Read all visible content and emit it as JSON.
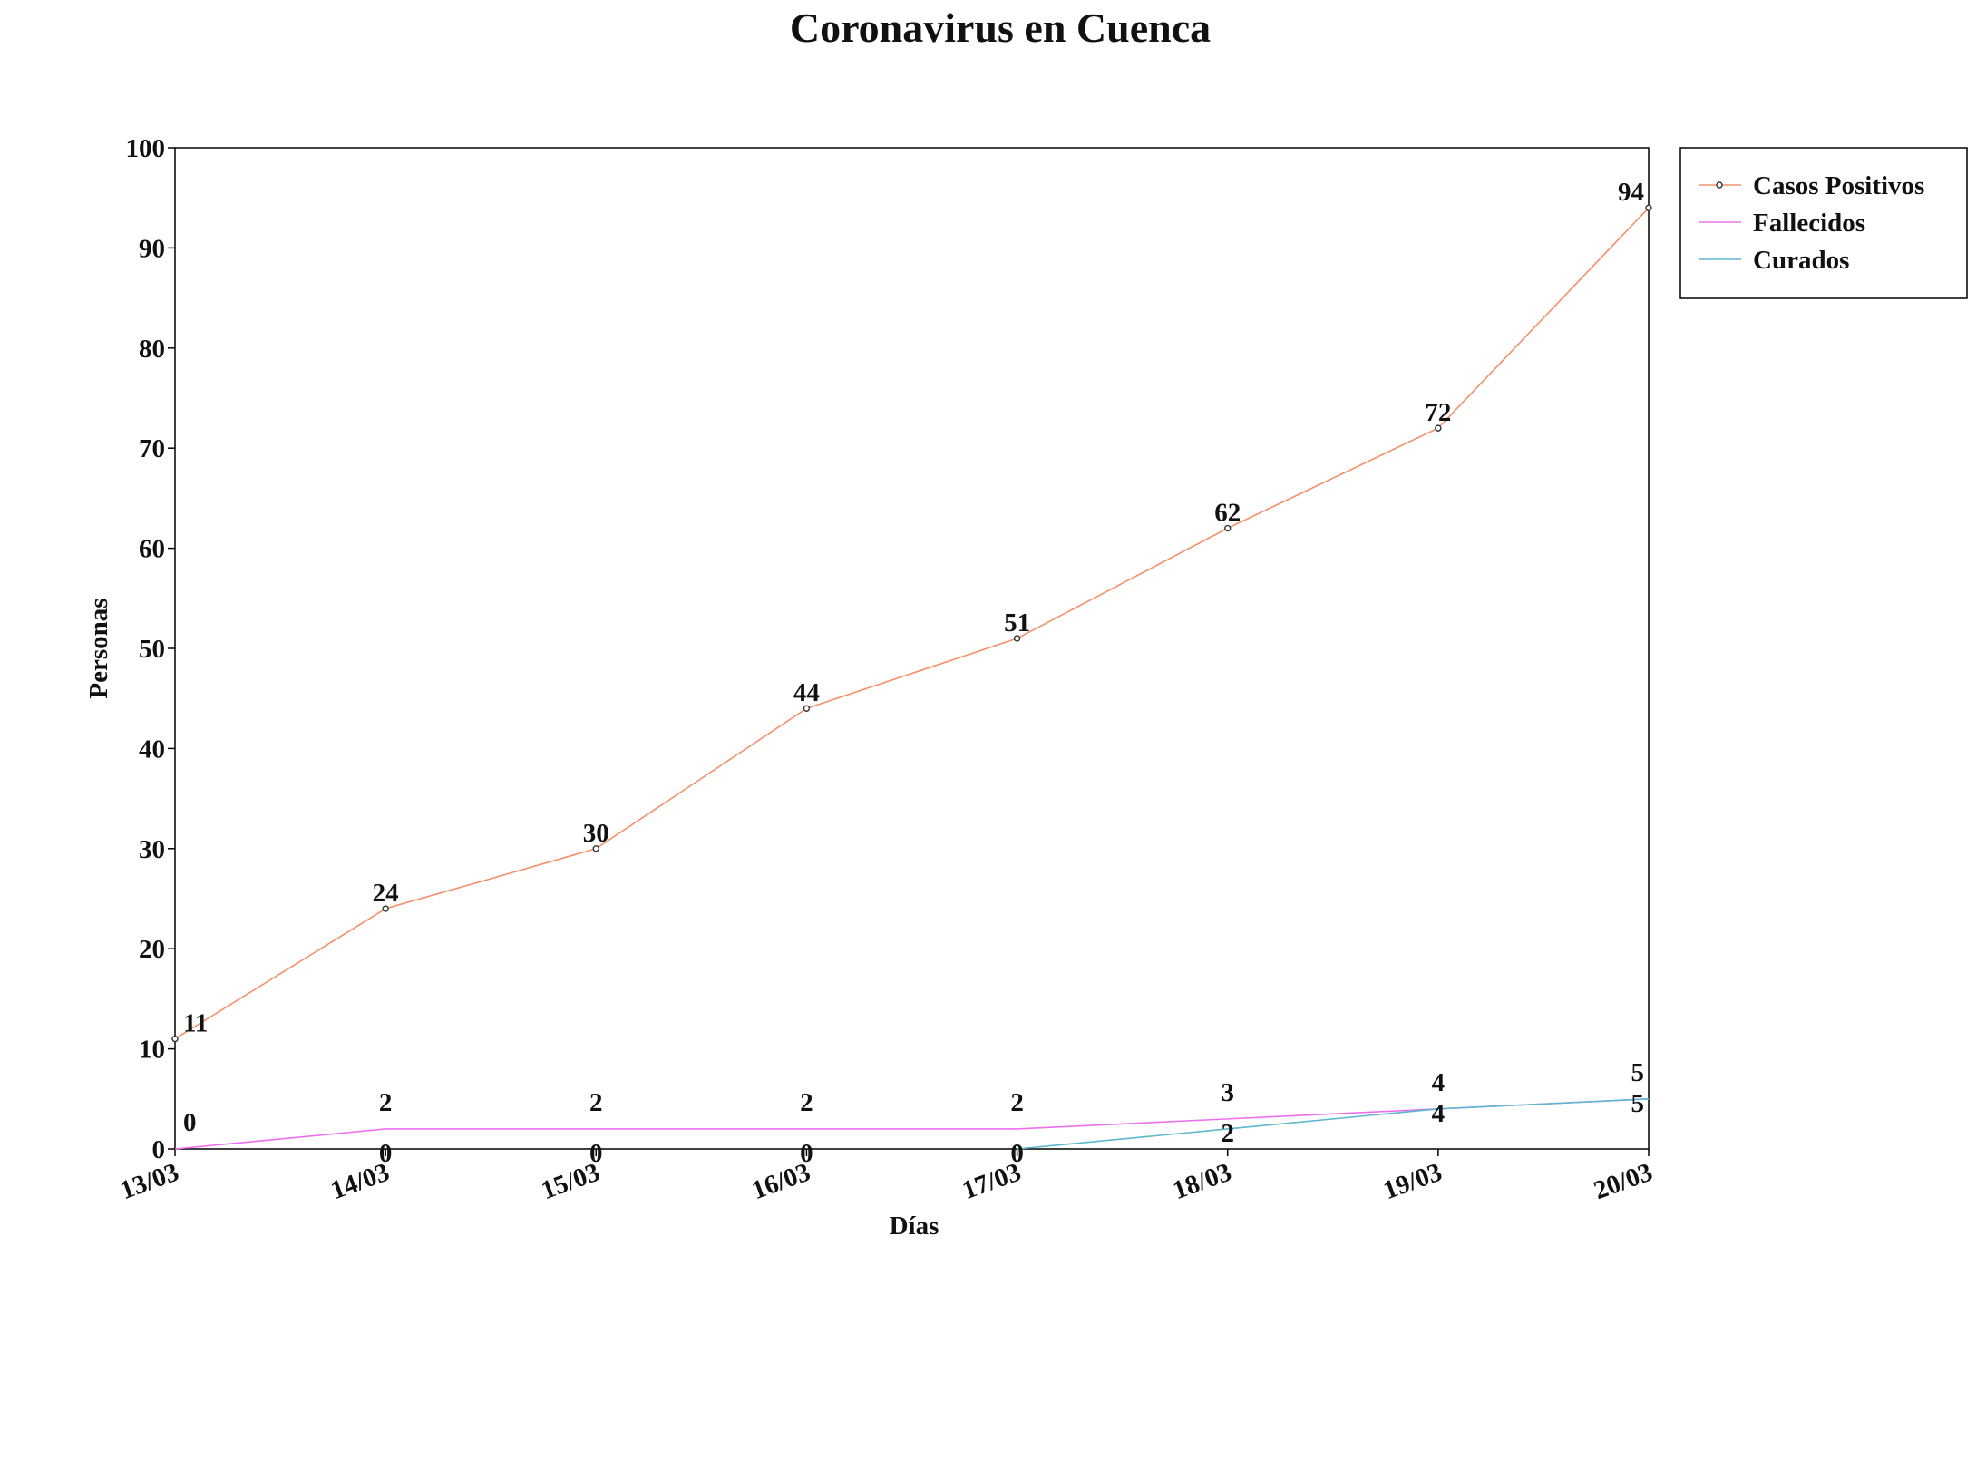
{
  "chart_data": {
    "type": "line",
    "title": "Coronavirus en Cuenca",
    "xlabel": "Días",
    "ylabel": "Personas",
    "categories": [
      "13/03",
      "14/03",
      "15/03",
      "16/03",
      "17/03",
      "18/03",
      "19/03",
      "20/03"
    ],
    "ylim": [
      0,
      100
    ],
    "yticks": [
      "0",
      "10",
      "20",
      "30",
      "40",
      "50",
      "60",
      "70",
      "80",
      "90",
      "100"
    ],
    "grid": false,
    "legend_position": "outside-top-right",
    "series": [
      {
        "name": "Casos Positivos",
        "color": "#f4906a",
        "markers": true,
        "values": [
          11,
          24,
          30,
          44,
          51,
          62,
          72,
          94
        ]
      },
      {
        "name": "Fallecidos",
        "color": "#ee70ee",
        "markers": false,
        "values": [
          0,
          2,
          2,
          2,
          2,
          3,
          4,
          5
        ]
      },
      {
        "name": "Curados",
        "color": "#5cb8cf",
        "markers": false,
        "values": [
          null,
          0,
          0,
          0,
          0,
          2,
          4,
          5
        ],
        "line_start_index": 4
      }
    ]
  }
}
